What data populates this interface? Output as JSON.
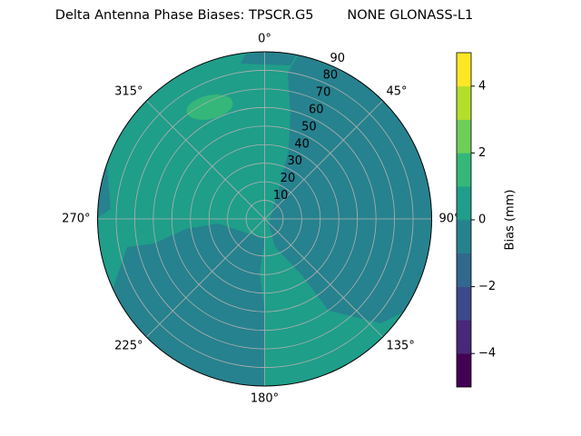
{
  "chart_data": {
    "type": "polar-contour",
    "title": "Delta Antenna Phase Biases: TPSCR.G5        NONE GLONASS-L1",
    "theta_ticks": [
      {
        "value": 0,
        "label": "0°"
      },
      {
        "value": 45,
        "label": "45°"
      },
      {
        "value": 90,
        "label": "90°"
      },
      {
        "value": 135,
        "label": "135°"
      },
      {
        "value": 180,
        "label": "180°"
      },
      {
        "value": 225,
        "label": "225°"
      },
      {
        "value": 270,
        "label": "270°"
      },
      {
        "value": 315,
        "label": "315°"
      }
    ],
    "rlim": [
      0,
      90
    ],
    "rticks": [
      10,
      20,
      30,
      40,
      50,
      60,
      70,
      80,
      90
    ],
    "grid": true,
    "colorbar": {
      "label": "Bias (mm)",
      "levels": [
        -5,
        -4,
        -3,
        -2,
        -1,
        0,
        1,
        2,
        3,
        4,
        5
      ],
      "colors": [
        "#440154",
        "#482878",
        "#3e4989",
        "#31688e",
        "#26828e",
        "#1f9e89",
        "#35b779",
        "#6ece58",
        "#b5de2b",
        "#fde725"
      ],
      "ticks": [
        {
          "value": -4,
          "label": "−4"
        },
        {
          "value": -2,
          "label": "−2"
        },
        0,
        2,
        4
      ]
    }
  }
}
